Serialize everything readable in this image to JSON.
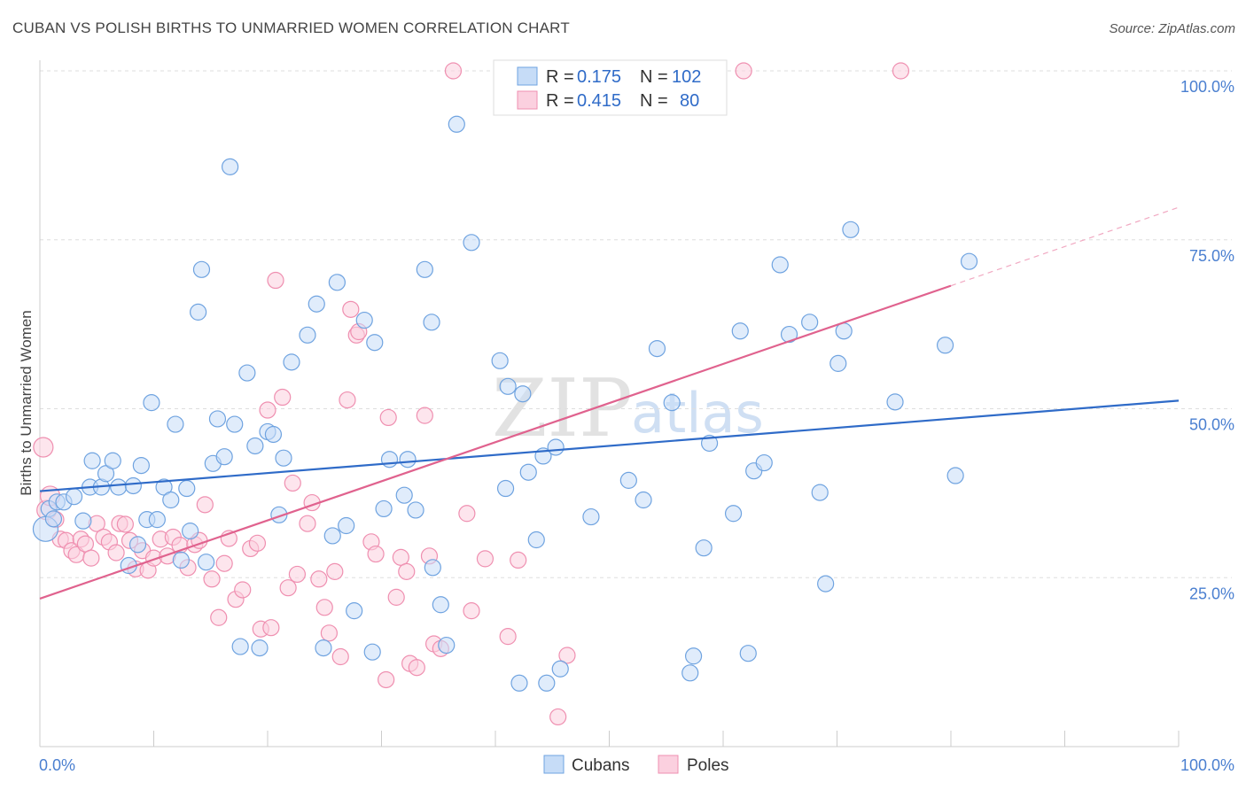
{
  "title": "CUBAN VS POLISH BIRTHS TO UNMARRIED WOMEN CORRELATION CHART",
  "source": "Source: ZipAtlas.com",
  "watermark": {
    "zip": "ZIP",
    "atlas": "atlas"
  },
  "colors": {
    "cubans": "#6fa3e0",
    "poles": "#ef8fb0",
    "cubans_line": "#2f6bc8",
    "poles_line": "#e0628e",
    "tick": "#4a7fd0"
  },
  "legend": {
    "r_label": "R =",
    "n_label": "N =",
    "rows": [
      {
        "series": "Cubans",
        "r": "0.175",
        "n": "102"
      },
      {
        "series": "Poles",
        "r": "0.415",
        "n": "80"
      }
    ]
  },
  "bottom_legend": [
    "Cubans",
    "Poles"
  ],
  "chart_data": {
    "type": "scatter",
    "title": "CUBAN VS POLISH BIRTHS TO UNMARRIED WOMEN CORRELATION CHART",
    "xlabel": "",
    "ylabel": "Births to Unmarried Women",
    "xlim": [
      0,
      100
    ],
    "ylim": [
      0,
      100
    ],
    "x_tick_labels": [
      "0.0%",
      "100.0%"
    ],
    "y_ticks": [
      25,
      50,
      75,
      100
    ],
    "y_tick_labels": [
      "25.0%",
      "50.0%",
      "75.0%",
      "100.0%"
    ],
    "grid": true,
    "legend_position": "top-center",
    "series": [
      {
        "name": "Cubans",
        "color": "#6fa3e0",
        "trend": {
          "x": [
            0,
            100
          ],
          "y": [
            37.8,
            51.2
          ]
        },
        "points": [
          [
            0.5,
            32.2
          ],
          [
            0.8,
            35.2
          ],
          [
            1.2,
            33.7
          ],
          [
            1.5,
            36.2
          ],
          [
            2.1,
            36.2
          ],
          [
            3.0,
            37.0
          ],
          [
            3.8,
            33.4
          ],
          [
            4.4,
            38.4
          ],
          [
            4.6,
            42.3
          ],
          [
            5.4,
            38.4
          ],
          [
            5.8,
            40.4
          ],
          [
            6.4,
            42.3
          ],
          [
            6.9,
            38.4
          ],
          [
            7.8,
            26.8
          ],
          [
            8.2,
            38.6
          ],
          [
            8.6,
            29.9
          ],
          [
            8.9,
            41.6
          ],
          [
            9.4,
            33.6
          ],
          [
            9.8,
            50.9
          ],
          [
            10.3,
            33.6
          ],
          [
            10.9,
            38.4
          ],
          [
            11.5,
            36.5
          ],
          [
            11.9,
            47.7
          ],
          [
            12.4,
            27.6
          ],
          [
            12.9,
            38.2
          ],
          [
            13.2,
            31.9
          ],
          [
            13.9,
            64.3
          ],
          [
            14.2,
            70.6
          ],
          [
            14.6,
            27.3
          ],
          [
            15.2,
            41.9
          ],
          [
            15.6,
            48.5
          ],
          [
            16.2,
            42.9
          ],
          [
            16.7,
            85.8
          ],
          [
            17.1,
            47.7
          ],
          [
            17.6,
            14.8
          ],
          [
            18.2,
            55.3
          ],
          [
            18.9,
            44.5
          ],
          [
            19.3,
            14.6
          ],
          [
            20.0,
            46.6
          ],
          [
            20.5,
            46.2
          ],
          [
            21.0,
            34.3
          ],
          [
            21.4,
            42.7
          ],
          [
            22.1,
            56.9
          ],
          [
            23.5,
            60.9
          ],
          [
            24.3,
            65.5
          ],
          [
            24.9,
            14.6
          ],
          [
            25.7,
            31.2
          ],
          [
            26.1,
            68.7
          ],
          [
            26.9,
            32.7
          ],
          [
            27.6,
            20.1
          ],
          [
            28.5,
            63.1
          ],
          [
            29.4,
            59.8
          ],
          [
            29.2,
            14.0
          ],
          [
            30.2,
            35.2
          ],
          [
            30.7,
            42.5
          ],
          [
            32.0,
            37.2
          ],
          [
            32.3,
            42.5
          ],
          [
            33.0,
            35.0
          ],
          [
            33.8,
            70.6
          ],
          [
            34.4,
            62.8
          ],
          [
            34.5,
            26.5
          ],
          [
            35.2,
            21.0
          ],
          [
            35.7,
            15.0
          ],
          [
            36.6,
            92.1
          ],
          [
            37.9,
            74.6
          ],
          [
            40.4,
            57.1
          ],
          [
            40.9,
            38.2
          ],
          [
            41.1,
            53.3
          ],
          [
            42.1,
            9.4
          ],
          [
            42.4,
            52.2
          ],
          [
            42.9,
            40.6
          ],
          [
            43.6,
            30.6
          ],
          [
            44.5,
            9.4
          ],
          [
            44.2,
            43.0
          ],
          [
            45.3,
            44.3
          ],
          [
            45.7,
            11.5
          ],
          [
            48.4,
            34.0
          ],
          [
            51.7,
            39.4
          ],
          [
            53.0,
            36.5
          ],
          [
            54.2,
            58.9
          ],
          [
            55.5,
            50.9
          ],
          [
            57.1,
            10.9
          ],
          [
            57.4,
            13.4
          ],
          [
            58.3,
            29.4
          ],
          [
            58.8,
            44.9
          ],
          [
            60.9,
            34.5
          ],
          [
            61.5,
            61.5
          ],
          [
            62.2,
            13.8
          ],
          [
            62.7,
            40.8
          ],
          [
            63.6,
            42.0
          ],
          [
            65.0,
            71.3
          ],
          [
            65.8,
            61.0
          ],
          [
            67.6,
            62.8
          ],
          [
            68.5,
            37.6
          ],
          [
            69.0,
            24.1
          ],
          [
            70.1,
            56.7
          ],
          [
            70.6,
            61.5
          ],
          [
            71.2,
            76.5
          ],
          [
            75.1,
            51.0
          ],
          [
            79.5,
            59.4
          ],
          [
            80.4,
            40.1
          ],
          [
            81.6,
            71.8
          ]
        ]
      },
      {
        "name": "Poles",
        "color": "#ef8fb0",
        "trend": {
          "x": [
            0,
            80
          ],
          "y": [
            21.9,
            68.2
          ]
        },
        "trend_dashed": {
          "x": [
            80,
            100
          ],
          "y": [
            68.2,
            79.8
          ]
        },
        "points": [
          [
            0.3,
            44.3
          ],
          [
            0.6,
            35.0
          ],
          [
            0.9,
            37.1
          ],
          [
            1.4,
            33.6
          ],
          [
            1.8,
            30.7
          ],
          [
            2.3,
            30.5
          ],
          [
            2.8,
            29.0
          ],
          [
            3.2,
            28.4
          ],
          [
            3.6,
            30.7
          ],
          [
            4.0,
            30.0
          ],
          [
            4.5,
            27.9
          ],
          [
            5.0,
            33.0
          ],
          [
            5.6,
            31.0
          ],
          [
            6.1,
            30.3
          ],
          [
            6.7,
            28.7
          ],
          [
            7.0,
            33.0
          ],
          [
            7.5,
            32.9
          ],
          [
            7.9,
            30.5
          ],
          [
            8.4,
            26.3
          ],
          [
            9.0,
            29.0
          ],
          [
            9.5,
            26.1
          ],
          [
            10.0,
            27.9
          ],
          [
            10.6,
            30.7
          ],
          [
            11.2,
            28.2
          ],
          [
            11.7,
            31.0
          ],
          [
            12.3,
            29.8
          ],
          [
            13.0,
            26.5
          ],
          [
            13.6,
            29.9
          ],
          [
            14.0,
            30.5
          ],
          [
            14.5,
            35.8
          ],
          [
            15.1,
            24.8
          ],
          [
            15.7,
            19.1
          ],
          [
            16.2,
            27.1
          ],
          [
            16.6,
            30.8
          ],
          [
            17.2,
            21.8
          ],
          [
            17.8,
            23.2
          ],
          [
            18.5,
            29.3
          ],
          [
            19.1,
            30.1
          ],
          [
            19.4,
            17.4
          ],
          [
            20.0,
            49.8
          ],
          [
            20.3,
            17.6
          ],
          [
            21.3,
            51.7
          ],
          [
            21.8,
            23.5
          ],
          [
            22.2,
            39.0
          ],
          [
            22.6,
            25.5
          ],
          [
            23.5,
            33.0
          ],
          [
            23.9,
            36.1
          ],
          [
            24.5,
            24.8
          ],
          [
            25.0,
            20.6
          ],
          [
            25.4,
            16.8
          ],
          [
            25.9,
            25.9
          ],
          [
            26.4,
            13.3
          ],
          [
            27.0,
            51.3
          ],
          [
            27.3,
            64.7
          ],
          [
            27.8,
            60.9
          ],
          [
            28.0,
            61.4
          ],
          [
            29.1,
            30.3
          ],
          [
            29.5,
            28.5
          ],
          [
            30.4,
            9.9
          ],
          [
            30.6,
            48.7
          ],
          [
            31.3,
            22.1
          ],
          [
            31.7,
            28.0
          ],
          [
            32.2,
            25.9
          ],
          [
            32.5,
            12.3
          ],
          [
            33.1,
            11.7
          ],
          [
            33.8,
            49.0
          ],
          [
            34.2,
            28.2
          ],
          [
            34.6,
            15.2
          ],
          [
            35.2,
            14.5
          ],
          [
            37.5,
            34.5
          ],
          [
            37.9,
            20.1
          ],
          [
            39.1,
            27.8
          ],
          [
            41.1,
            16.3
          ],
          [
            42.0,
            27.6
          ],
          [
            46.3,
            13.5
          ],
          [
            45.5,
            4.4
          ],
          [
            36.3,
            100
          ],
          [
            61.8,
            100
          ],
          [
            75.6,
            100
          ],
          [
            20.7,
            69.0
          ]
        ]
      }
    ]
  }
}
